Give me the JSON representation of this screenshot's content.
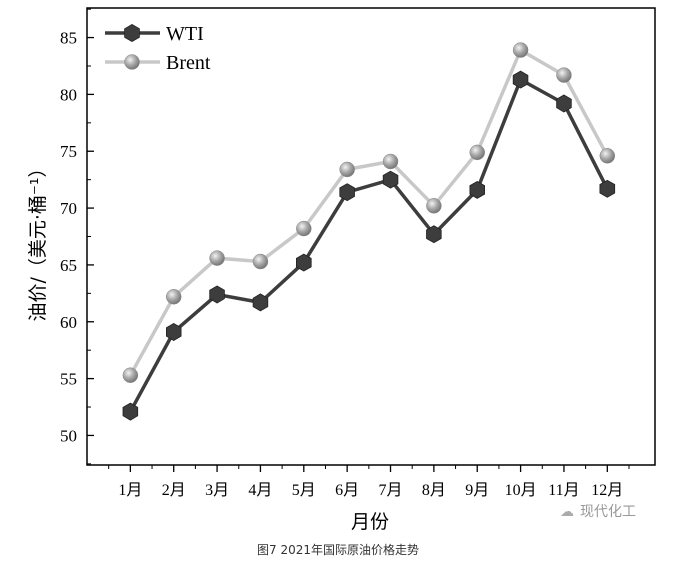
{
  "chart_data": {
    "type": "line",
    "title": "",
    "caption": "图7  2021年国际原油价格走势",
    "xlabel": "月份",
    "ylabel": "油价/（美元·桶⁻¹）",
    "categories": [
      "1月",
      "2月",
      "3月",
      "4月",
      "5月",
      "6月",
      "7月",
      "8月",
      "9月",
      "10月",
      "11月",
      "12月"
    ],
    "x": [
      1,
      2,
      3,
      4,
      5,
      6,
      7,
      8,
      9,
      10,
      11,
      12
    ],
    "xlim": [
      0,
      13.1
    ],
    "ylim": [
      47.4,
      87.6
    ],
    "yticks": [
      50,
      55,
      60,
      65,
      70,
      75,
      80,
      85
    ],
    "grid": false,
    "legend_placement": "top-left",
    "series": [
      {
        "name": "WTI",
        "marker": "hexagon",
        "color": "#3d3d3d",
        "values": [
          52.1,
          59.1,
          62.4,
          61.7,
          65.2,
          71.4,
          72.5,
          67.7,
          71.6,
          81.3,
          79.2,
          71.7
        ]
      },
      {
        "name": "Brent",
        "marker": "sphere",
        "color": "#c8c8c8",
        "values": [
          55.3,
          62.2,
          65.6,
          65.3,
          68.2,
          73.4,
          74.1,
          70.2,
          74.9,
          83.9,
          81.7,
          74.6
        ]
      }
    ]
  },
  "watermark": "现代化工"
}
